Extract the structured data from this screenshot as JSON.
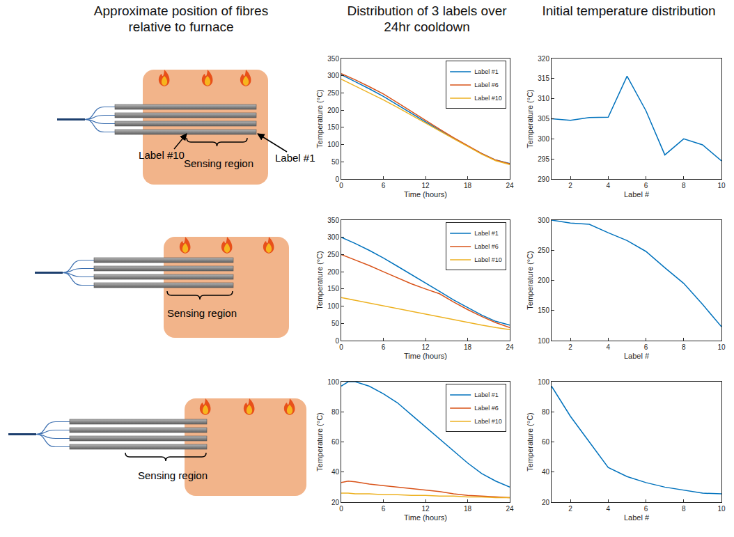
{
  "headers": [
    "Approximate position of fibres relative to furnace",
    "Distribution of 3 labels over 24hr cooldown",
    "Initial temperature distribution"
  ],
  "diagrams": [
    {
      "label_end": "Label #10",
      "label_start": "Label #1",
      "region": "Sensing region"
    },
    {
      "region": "Sensing region"
    },
    {
      "region": "Sensing region"
    }
  ],
  "chart_data": [
    {
      "type": "line",
      "xlabel": "Time (hours)",
      "ylabel": "Temperature (°C)",
      "x": [
        0,
        2,
        4,
        6,
        8,
        10,
        12,
        14,
        16,
        18,
        20,
        22,
        24
      ],
      "xlim": [
        0,
        24
      ],
      "xticks": [
        0,
        6,
        12,
        18,
        24
      ],
      "ylim": [
        0,
        350
      ],
      "yticks": [
        0,
        50,
        100,
        150,
        200,
        250,
        300,
        350
      ],
      "grid": false,
      "legend": "upper right",
      "series": [
        {
          "name": "Label #1",
          "color": "#0072BD",
          "values": [
            303,
            283,
            262,
            240,
            215,
            190,
            166,
            142,
            118,
            96,
            74,
            55,
            45
          ]
        },
        {
          "name": "Label #6",
          "color": "#D95319",
          "values": [
            306,
            288,
            268,
            247,
            222,
            196,
            170,
            145,
            120,
            97,
            74,
            55,
            44
          ]
        },
        {
          "name": "Label #10",
          "color": "#EDB120",
          "values": [
            290,
            270,
            250,
            230,
            208,
            185,
            162,
            140,
            117,
            95,
            72,
            53,
            42
          ]
        }
      ]
    },
    {
      "type": "line",
      "xlabel": "Label #",
      "ylabel": "Temperature (°C)",
      "x": [
        1,
        2,
        3,
        4,
        5,
        6,
        7,
        8,
        9,
        10
      ],
      "xlim": [
        1,
        10
      ],
      "xticks": [
        2,
        4,
        6,
        8,
        10
      ],
      "ylim": [
        290,
        320
      ],
      "yticks": [
        290,
        295,
        300,
        305,
        310,
        315,
        320
      ],
      "grid": false,
      "series": [
        {
          "color": "#0072BD",
          "values": [
            305,
            304.6,
            305.3,
            305.4,
            315.6,
            307,
            296,
            300,
            298.5,
            294.5
          ]
        }
      ]
    },
    {
      "type": "line",
      "xlabel": "Time (hours)",
      "ylabel": "Temperature (°C)",
      "x": [
        0,
        2,
        4,
        6,
        8,
        10,
        12,
        14,
        16,
        18,
        20,
        22,
        24
      ],
      "xlim": [
        0,
        24
      ],
      "xticks": [
        0,
        6,
        12,
        18,
        24
      ],
      "ylim": [
        0,
        350
      ],
      "yticks": [
        0,
        50,
        100,
        150,
        200,
        250,
        300,
        350
      ],
      "grid": false,
      "legend": "upper right",
      "series": [
        {
          "name": "Label #1",
          "color": "#0072BD",
          "values": [
            300,
            282,
            262,
            240,
            216,
            192,
            168,
            143,
            118,
            96,
            74,
            56,
            45
          ]
        },
        {
          "name": "Label #6",
          "color": "#D95319",
          "values": [
            250,
            234,
            218,
            200,
            183,
            165,
            150,
            136,
            112,
            90,
            70,
            52,
            38
          ]
        },
        {
          "name": "Label #10",
          "color": "#EDB120",
          "values": [
            125,
            117,
            108,
            100,
            92,
            84,
            76,
            68,
            60,
            52,
            45,
            38,
            32
          ]
        }
      ]
    },
    {
      "type": "line",
      "xlabel": "Label #",
      "ylabel": "Temperature (°C)",
      "x": [
        1,
        2,
        3,
        4,
        5,
        6,
        7,
        8,
        9,
        10
      ],
      "xlim": [
        1,
        10
      ],
      "xticks": [
        2,
        4,
        6,
        8,
        10
      ],
      "ylim": [
        100,
        300
      ],
      "yticks": [
        100,
        150,
        200,
        250,
        300
      ],
      "grid": false,
      "series": [
        {
          "color": "#0072BD",
          "values": [
            300,
            295,
            293,
            279,
            266,
            248,
            221,
            195,
            160,
            123
          ]
        }
      ]
    },
    {
      "type": "line",
      "xlabel": "Time (hours)",
      "ylabel": "Temperature (°C)",
      "x": [
        0,
        1,
        2,
        4,
        6,
        8,
        10,
        12,
        14,
        16,
        18,
        20,
        22,
        24
      ],
      "xlim": [
        0,
        24
      ],
      "xticks": [
        0,
        6,
        12,
        18,
        24
      ],
      "ylim": [
        20,
        100
      ],
      "yticks": [
        20,
        40,
        60,
        80,
        100
      ],
      "grid": false,
      "legend": "upper right",
      "series": [
        {
          "name": "Label #1",
          "color": "#0072BD",
          "values": [
            97,
            100,
            100,
            97,
            92,
            86,
            78,
            70,
            62,
            54,
            46,
            39,
            34,
            30
          ]
        },
        {
          "name": "Label #6",
          "color": "#D95319",
          "values": [
            33,
            34,
            33.5,
            32,
            31,
            30,
            29,
            28,
            27,
            25.5,
            24.5,
            24,
            23.5,
            23
          ]
        },
        {
          "name": "Label #10",
          "color": "#EDB120",
          "values": [
            26,
            26,
            25.5,
            25.5,
            25,
            25,
            24.5,
            24.5,
            24,
            24,
            23.5,
            23.5,
            23,
            23
          ]
        }
      ]
    },
    {
      "type": "line",
      "xlabel": "Label #",
      "ylabel": "Temperature (°C)",
      "x": [
        1,
        2,
        3,
        4,
        5,
        6,
        7,
        8,
        9,
        10
      ],
      "xlim": [
        1,
        10
      ],
      "xticks": [
        2,
        4,
        6,
        8,
        10
      ],
      "ylim": [
        20,
        100
      ],
      "yticks": [
        20,
        40,
        60,
        80,
        100
      ],
      "grid": false,
      "series": [
        {
          "color": "#0072BD",
          "values": [
            97,
            77,
            60,
            43,
            37,
            33,
            30,
            28,
            26,
            25.5
          ]
        }
      ]
    }
  ]
}
